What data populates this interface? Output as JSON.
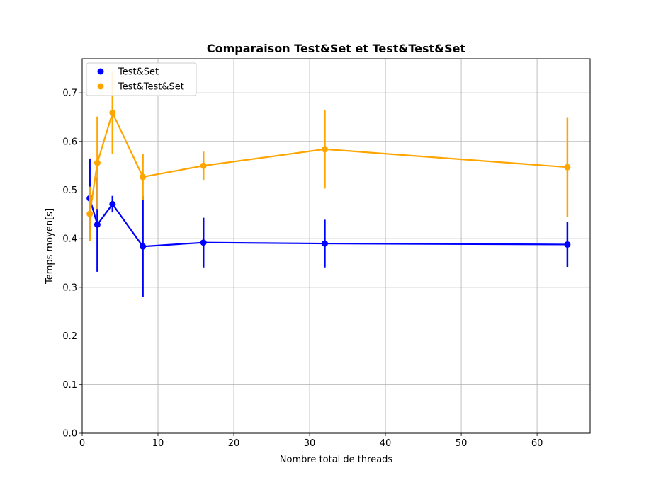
{
  "chart_data": {
    "type": "line",
    "title": "Comparaison Test&Set et Test&Test&Set",
    "xlabel": "Nombre total de threads",
    "ylabel": "Temps moyen[s]",
    "xlim": [
      0,
      67
    ],
    "ylim": [
      0,
      0.77
    ],
    "xticks": [
      0,
      10,
      20,
      30,
      40,
      50,
      60
    ],
    "yticks": [
      0.0,
      0.1,
      0.2,
      0.3,
      0.4,
      0.5,
      0.6,
      0.7
    ],
    "grid": true,
    "legend_position": "top-left",
    "series": [
      {
        "name": "Test&Set",
        "color": "#0000ff",
        "x": [
          1,
          2,
          4,
          8,
          16,
          32,
          64
        ],
        "y": [
          0.483,
          0.429,
          0.471,
          0.384,
          0.392,
          0.39,
          0.388
        ],
        "err": [
          0.082,
          0.097,
          0.017,
          0.104,
          0.051,
          0.049,
          0.046
        ]
      },
      {
        "name": "Test&Test&Set",
        "color": "#ffa500",
        "x": [
          1,
          2,
          4,
          8,
          16,
          32,
          64
        ],
        "y": [
          0.451,
          0.556,
          0.659,
          0.527,
          0.55,
          0.584,
          0.547
        ],
        "err": [
          0.056,
          0.095,
          0.084,
          0.047,
          0.029,
          0.081,
          0.103
        ]
      }
    ]
  }
}
